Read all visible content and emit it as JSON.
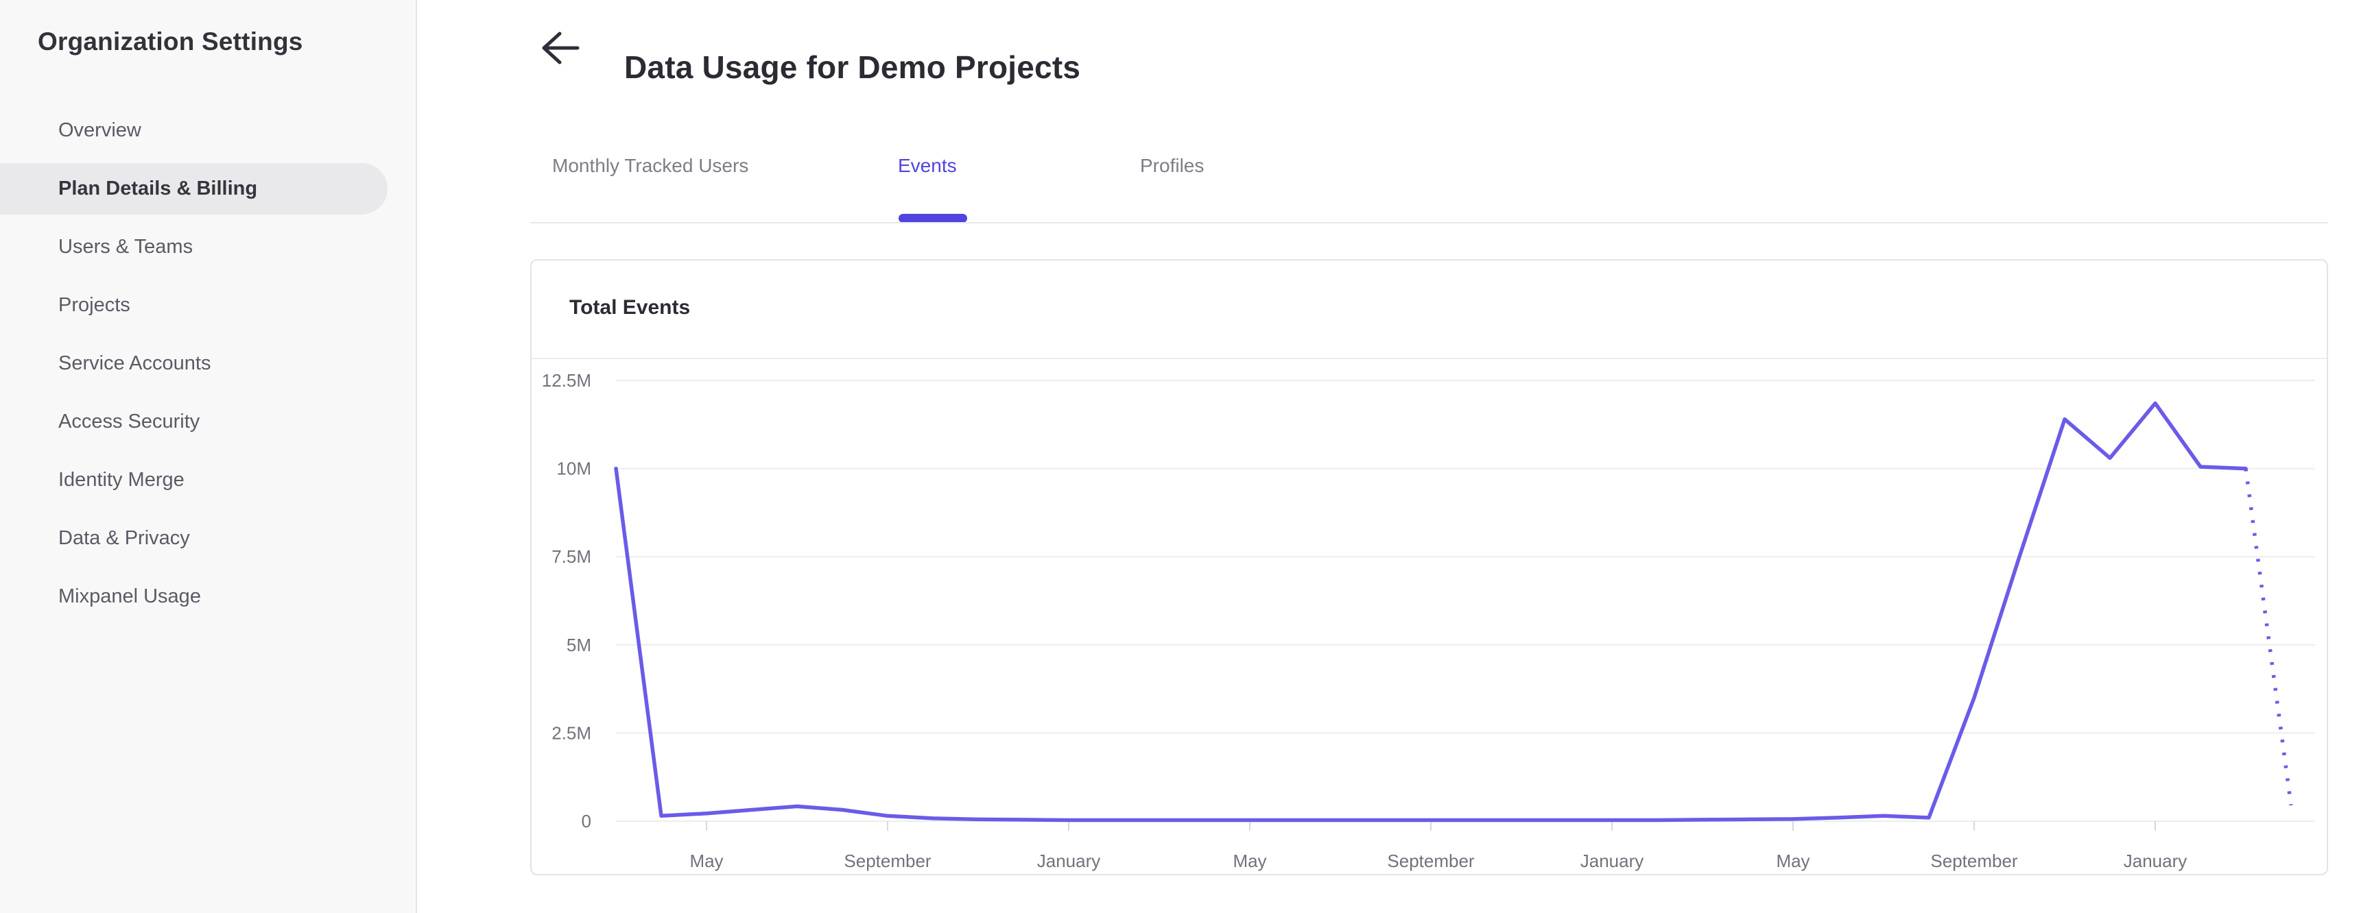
{
  "sidebar": {
    "title": "Organization Settings",
    "items": [
      {
        "label": "Overview",
        "selected": false
      },
      {
        "label": "Plan Details & Billing",
        "selected": true
      },
      {
        "label": "Users & Teams",
        "selected": false
      },
      {
        "label": "Projects",
        "selected": false
      },
      {
        "label": "Service Accounts",
        "selected": false
      },
      {
        "label": "Access Security",
        "selected": false
      },
      {
        "label": "Identity Merge",
        "selected": false
      },
      {
        "label": "Data & Privacy",
        "selected": false
      },
      {
        "label": "Mixpanel Usage",
        "selected": false
      }
    ]
  },
  "header": {
    "title": "Data Usage for Demo Projects",
    "back_icon": "left-arrow"
  },
  "tabs": [
    {
      "label": "Monthly Tracked Users",
      "active": false
    },
    {
      "label": "Events",
      "active": true
    },
    {
      "label": "Profiles",
      "active": false
    }
  ],
  "card": {
    "title": "Total Events"
  },
  "colors": {
    "accent_purple": "#4f44e0",
    "chart_line_purple": "#6a5be8",
    "sidebar_bg": "#f8f8f9",
    "selected_pill": "#e9e9ec",
    "gridline": "#ededee",
    "axis_text": "#72727c"
  },
  "chart_data": {
    "type": "line",
    "title": "Total Events",
    "series_name": "Total Events",
    "series_color": "#6a5be8",
    "ylim": [
      0,
      12500000
    ],
    "grid": true,
    "legend": "none",
    "y_ticks": [
      {
        "label": "12.5M",
        "value": 12500000
      },
      {
        "label": "10M",
        "value": 10000000
      },
      {
        "label": "7.5M",
        "value": 7500000
      },
      {
        "label": "5M",
        "value": 5000000
      },
      {
        "label": "2.5M",
        "value": 2500000
      },
      {
        "label": "0",
        "value": 0
      }
    ],
    "x_labels": [
      {
        "index": 2,
        "label": "May"
      },
      {
        "index": 6,
        "label": "September"
      },
      {
        "index": 10,
        "label": "January"
      },
      {
        "index": 14,
        "label": "May"
      },
      {
        "index": 18,
        "label": "September"
      },
      {
        "index": 22,
        "label": "January"
      },
      {
        "index": 26,
        "label": "May"
      },
      {
        "index": 30,
        "label": "September"
      },
      {
        "index": 34,
        "label": "January"
      }
    ],
    "values": [
      10000000,
      150000,
      220000,
      320000,
      420000,
      320000,
      150000,
      80000,
      50000,
      40000,
      30000,
      30000,
      30000,
      30000,
      30000,
      30000,
      30000,
      30000,
      30000,
      30000,
      30000,
      30000,
      30000,
      30000,
      40000,
      50000,
      60000,
      100000,
      150000,
      100000,
      3500000,
      7500000,
      11400000,
      10300000,
      11850000,
      10050000,
      10000000,
      450000
    ],
    "projected_final_segment": true
  }
}
